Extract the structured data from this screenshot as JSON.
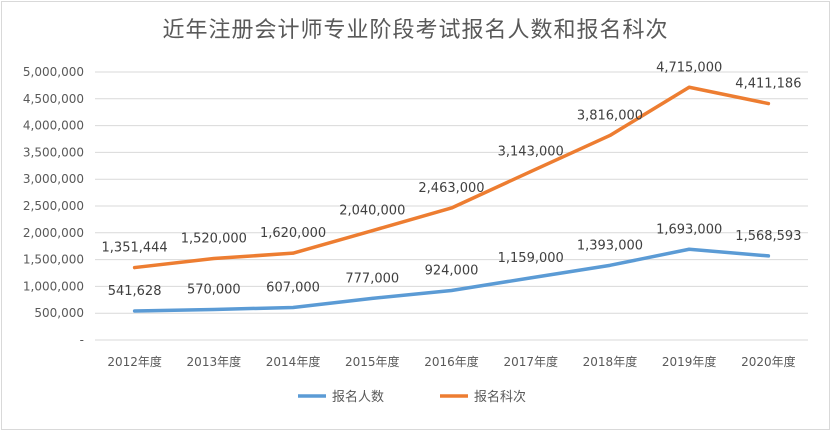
{
  "chart_data": {
    "type": "line",
    "title": "近年注册会计师专业阶段考试报名人数和报名科次",
    "categories": [
      "2012年度",
      "2013年度",
      "2014年度",
      "2015年度",
      "2016年度",
      "2017年度",
      "2018年度",
      "2019年度",
      "2020年度"
    ],
    "series": [
      {
        "name": "报名人数",
        "color": "#5b9bd5",
        "values": [
          541628,
          570000,
          607000,
          777000,
          924000,
          1159000,
          1393000,
          1693000,
          1568593
        ],
        "labels": [
          "541,628",
          "570,000",
          "607,000",
          "777,000",
          "924,000",
          "1,159,000",
          "1,393,000",
          "1,693,000",
          "1,568,593"
        ]
      },
      {
        "name": "报名科次",
        "color": "#ed7d31",
        "values": [
          1351444,
          1520000,
          1620000,
          2040000,
          2463000,
          3143000,
          3816000,
          4715000,
          4411186
        ],
        "labels": [
          "1,351,444",
          "1,520,000",
          "1,620,000",
          "2,040,000",
          "2,463,000",
          "3,143,000",
          "3,816,000",
          "4,715,000",
          "4,411,186"
        ]
      }
    ],
    "ylim": [
      0,
      5000000
    ],
    "yticks": [
      0,
      500000,
      1000000,
      1500000,
      2000000,
      2500000,
      3000000,
      3500000,
      4000000,
      4500000,
      5000000
    ],
    "ytick_labels": [
      "-",
      "500,000",
      "1,000,000",
      "1,500,000",
      "2,000,000",
      "2,500,000",
      "3,000,000",
      "3,500,000",
      "4,000,000",
      "4,500,000",
      "5,000,000"
    ],
    "grid": true,
    "legend_position": "bottom",
    "gridline_color": "#d9d9d9"
  }
}
